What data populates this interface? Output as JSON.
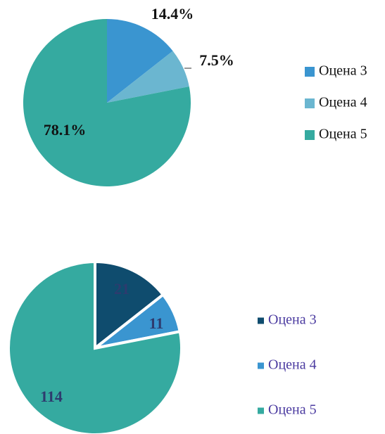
{
  "chart_data": [
    {
      "type": "pie",
      "categories": [
        "Оцена 3",
        "Оцена 4",
        "Оцена 5"
      ],
      "values": [
        14.4,
        7.5,
        78.1
      ],
      "value_labels": [
        "14.4%",
        "7.5%",
        "78.1%"
      ],
      "colors": [
        "#3a95d0",
        "#6bb6d0",
        "#35aaa0"
      ]
    },
    {
      "type": "pie",
      "categories": [
        "Оцена 3",
        "Оцена 4",
        "Оцена 5"
      ],
      "values": [
        21,
        11,
        114
      ],
      "colors": [
        "#0f4c6e",
        "#3a95d0",
        "#35aaa0"
      ]
    }
  ]
}
